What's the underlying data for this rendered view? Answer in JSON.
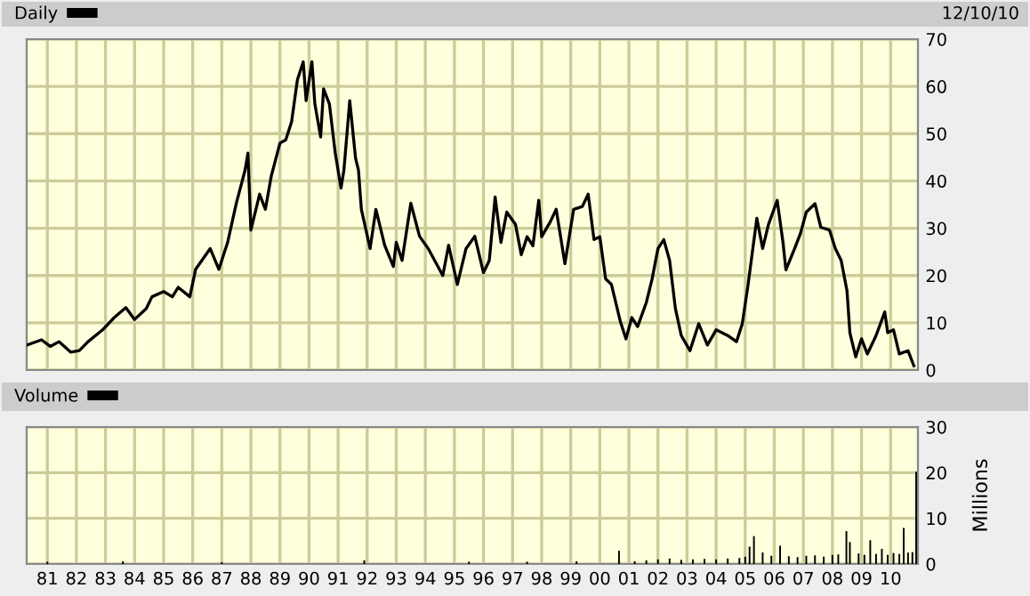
{
  "chart_data": [
    {
      "type": "line",
      "annotations": [
        "12/10/10"
      ],
      "legend": "top left",
      "grid": true,
      "tick_labels": "y",
      "xlim": [
        1980.29,
        2010.94
      ],
      "xticks": [
        1981,
        1982,
        1983,
        1984,
        1985,
        1986,
        1987,
        1988,
        1989,
        1990,
        1991,
        1992,
        1993,
        1994,
        1995,
        1996,
        1997,
        1998,
        1999,
        2000,
        2001,
        2002,
        2003,
        2004,
        2005,
        2006,
        2007,
        2008,
        2009,
        2010
      ],
      "ylim": [
        0,
        70
      ],
      "yticks": [
        0,
        10,
        20,
        30,
        40,
        50,
        60,
        70
      ],
      "series": [
        {
          "name": "Daily",
          "color": "#000000",
          "x": [
            1980.3,
            1980.8,
            1981.1,
            1981.4,
            1981.8,
            1982.1,
            1982.4,
            1982.9,
            1983.3,
            1983.7,
            1984.0,
            1984.4,
            1984.6,
            1985.0,
            1985.3,
            1985.5,
            1985.9,
            1986.1,
            1986.6,
            1986.9,
            1987.2,
            1987.5,
            1987.8,
            1987.9,
            1988.0,
            1988.3,
            1988.5,
            1988.7,
            1989.0,
            1989.2,
            1989.4,
            1989.6,
            1989.8,
            1989.9,
            1990.1,
            1990.2,
            1990.4,
            1990.5,
            1990.7,
            1990.9,
            1991.1,
            1991.2,
            1991.4,
            1991.6,
            1991.7,
            1991.8,
            1992.1,
            1992.3,
            1992.6,
            1992.9,
            1993.0,
            1993.2,
            1993.5,
            1993.8,
            1994.1,
            1994.6,
            1994.8,
            1995.1,
            1995.4,
            1995.7,
            1996.0,
            1996.2,
            1996.4,
            1996.6,
            1996.8,
            1997.1,
            1997.3,
            1997.5,
            1997.7,
            1997.9,
            1998.0,
            1998.3,
            1998.5,
            1998.8,
            1999.1,
            1999.4,
            1999.6,
            1999.8,
            2000.0,
            2000.2,
            2000.4,
            2000.7,
            2000.9,
            2001.1,
            2001.3,
            2001.6,
            2001.8,
            2002.0,
            2002.2,
            2002.4,
            2002.6,
            2002.8,
            2003.1,
            2003.4,
            2003.7,
            2004.0,
            2004.4,
            2004.7,
            2004.9,
            2005.1,
            2005.4,
            2005.6,
            2005.8,
            2006.1,
            2006.3,
            2006.4,
            2006.7,
            2006.9,
            2007.1,
            2007.4,
            2007.6,
            2007.9,
            2008.1,
            2008.3,
            2008.5,
            2008.6,
            2008.8,
            2009.0,
            2009.2,
            2009.5,
            2009.8,
            2009.9,
            2010.1,
            2010.3,
            2010.6,
            2010.8
          ],
          "values": [
            5.3,
            6.4,
            5.0,
            6.0,
            3.8,
            4.1,
            6.0,
            8.5,
            11.1,
            13.2,
            10.7,
            13.0,
            15.5,
            16.6,
            15.5,
            17.5,
            15.5,
            21.3,
            25.7,
            21.3,
            27.0,
            35.3,
            42.3,
            45.9,
            29.6,
            37.2,
            34.0,
            41.0,
            48.0,
            48.7,
            52.5,
            61.4,
            65.2,
            57.0,
            65.2,
            56.3,
            49.3,
            59.5,
            56.3,
            46.0,
            38.5,
            42.3,
            57.0,
            44.8,
            42.3,
            34.0,
            25.7,
            34.0,
            26.4,
            21.9,
            27.0,
            23.2,
            35.3,
            28.3,
            25.7,
            20.0,
            26.4,
            18.1,
            25.7,
            28.3,
            20.6,
            23.2,
            36.6,
            27.0,
            33.4,
            30.8,
            24.4,
            28.2,
            26.3,
            35.9,
            28.2,
            31.4,
            34.0,
            22.5,
            34.0,
            34.6,
            37.2,
            27.6,
            28.2,
            19.3,
            18.1,
            10.4,
            6.6,
            11.1,
            9.2,
            14.3,
            19.3,
            25.7,
            27.6,
            23.2,
            13.0,
            7.3,
            4.1,
            9.8,
            5.3,
            8.5,
            7.3,
            6.0,
            9.8,
            18.1,
            32.1,
            25.7,
            30.8,
            35.9,
            27.0,
            21.2,
            25.7,
            28.9,
            33.4,
            35.2,
            30.2,
            29.6,
            25.7,
            23.2,
            16.8,
            7.9,
            2.8,
            6.6,
            3.4,
            7.3,
            12.3,
            7.9,
            8.5,
            3.4,
            4.1,
            0.9
          ]
        }
      ]
    },
    {
      "type": "bar",
      "ylabel": "Millions",
      "legend": "top left",
      "grid": true,
      "xlim": [
        1980.29,
        2010.94
      ],
      "xticks": [
        {
          "value": 1981,
          "label": "81"
        },
        {
          "value": 1982,
          "label": "82"
        },
        {
          "value": 1983,
          "label": "83"
        },
        {
          "value": 1984,
          "label": "84"
        },
        {
          "value": 1985,
          "label": "85"
        },
        {
          "value": 1986,
          "label": "86"
        },
        {
          "value": 1987,
          "label": "87"
        },
        {
          "value": 1988,
          "label": "88"
        },
        {
          "value": 1989,
          "label": "89"
        },
        {
          "value": 1990,
          "label": "90"
        },
        {
          "value": 1991,
          "label": "91"
        },
        {
          "value": 1992,
          "label": "92"
        },
        {
          "value": 1993,
          "label": "93"
        },
        {
          "value": 1994,
          "label": "94"
        },
        {
          "value": 1995,
          "label": "95"
        },
        {
          "value": 1996,
          "label": "96"
        },
        {
          "value": 1997,
          "label": "97"
        },
        {
          "value": 1998,
          "label": "98"
        },
        {
          "value": 1999,
          "label": "99"
        },
        {
          "value": 2000,
          "label": "00"
        },
        {
          "value": 2001,
          "label": "01"
        },
        {
          "value": 2002,
          "label": "02"
        },
        {
          "value": 2003,
          "label": "03"
        },
        {
          "value": 2004,
          "label": "04"
        },
        {
          "value": 2005,
          "label": "05"
        },
        {
          "value": 2006,
          "label": "06"
        },
        {
          "value": 2007,
          "label": "07"
        },
        {
          "value": 2008,
          "label": "08"
        },
        {
          "value": 2009,
          "label": "09"
        },
        {
          "value": 2010,
          "label": "10"
        }
      ],
      "ylim": [
        0,
        30
      ],
      "yticks": [
        0,
        10,
        20,
        30
      ],
      "series": [
        {
          "name": "Volume",
          "color": "#000000",
          "x": [
            1981.0,
            1983.6,
            1987.0,
            1991.9,
            1995.5,
            1997.5,
            1999.2,
            2000.66,
            2001.2,
            2001.6,
            2002.0,
            2002.4,
            2002.8,
            2003.2,
            2003.6,
            2004.0,
            2004.4,
            2004.8,
            2005.0,
            2005.15,
            2005.3,
            2005.6,
            2005.9,
            2006.2,
            2006.5,
            2006.8,
            2007.1,
            2007.4,
            2007.7,
            2008.0,
            2008.2,
            2008.48,
            2008.6,
            2008.9,
            2009.1,
            2009.3,
            2009.5,
            2009.7,
            2009.9,
            2010.1,
            2010.3,
            2010.45,
            2010.6,
            2010.75,
            2010.88
          ],
          "values": [
            0.5,
            0.6,
            0.4,
            0.8,
            0.5,
            0.5,
            0.6,
            2.9,
            0.6,
            0.8,
            1.0,
            1.2,
            0.9,
            1.0,
            1.1,
            1.0,
            1.2,
            1.3,
            1.6,
            3.8,
            6.1,
            2.5,
            1.8,
            4.0,
            1.7,
            1.5,
            1.8,
            1.9,
            1.6,
            2.0,
            2.1,
            7.2,
            4.8,
            2.3,
            2.0,
            5.2,
            2.2,
            3.3,
            2.0,
            2.4,
            2.2,
            7.9,
            2.5,
            2.6,
            20.2
          ]
        }
      ]
    }
  ]
}
